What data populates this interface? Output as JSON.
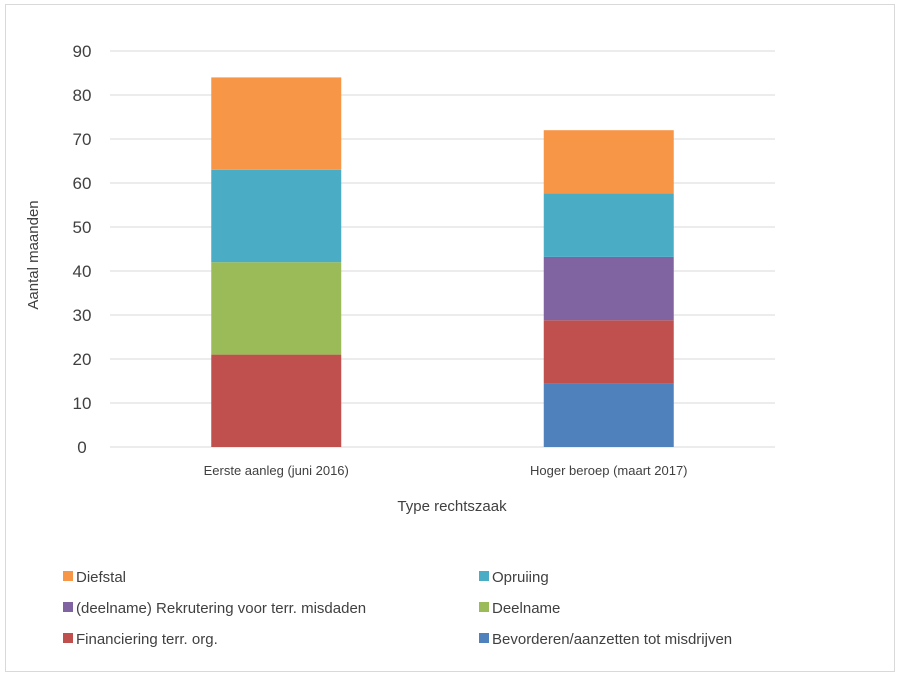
{
  "chart_data": {
    "type": "bar",
    "stacked": true,
    "categories": [
      "Eerste aanleg (juni 2016)",
      "Hoger beroep (maart 2017)"
    ],
    "series": [
      {
        "name": "Bevorderen/aanzetten tot misdrijven",
        "color": "#4f81bd",
        "values": [
          0,
          14.4
        ]
      },
      {
        "name": "Financiering terr. org.",
        "color": "#c0504d",
        "values": [
          21,
          14.4
        ]
      },
      {
        "name": "Deelname",
        "color": "#9bbb59",
        "values": [
          21,
          0
        ]
      },
      {
        "name": "(deelname) Rekrutering voor terr. misdaden",
        "color": "#8064a2",
        "values": [
          0,
          14.4
        ]
      },
      {
        "name": "Opruiing",
        "color": "#4bacc6",
        "values": [
          21,
          14.4
        ]
      },
      {
        "name": "Diefstal",
        "color": "#f79646",
        "values": [
          21,
          14.4
        ]
      }
    ],
    "legend_order": [
      "Diefstal",
      "Opruiing",
      "(deelname) Rekrutering voor terr. misdaden",
      "Deelname",
      "Financiering terr. org.",
      "Bevorderen/aanzetten tot misdrijven"
    ],
    "xlabel": "Type rechtszaak",
    "ylabel": "Aantal maanden",
    "ylim": [
      0,
      90
    ],
    "yticks": [
      0,
      10,
      20,
      30,
      40,
      50,
      60,
      70,
      80,
      90
    ],
    "grid": true,
    "legend_position": "bottom"
  }
}
